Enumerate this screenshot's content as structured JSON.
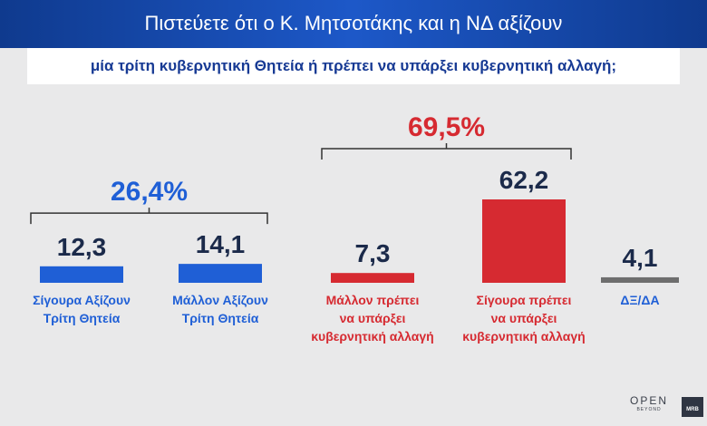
{
  "header": {
    "title": "Πιστεύετε ότι ο Κ. Μητσοτάκης και η ΝΔ αξίζουν",
    "subtitle": "μία τρίτη κυβερνητική Θητεία ή πρέπει να υπάρξει κυβερνητική αλλαγή;"
  },
  "chart_data": {
    "type": "bar",
    "title": "Πιστεύετε ότι ο Κ. Μητσοτάκης και η ΝΔ αξίζουν μία τρίτη κυβερνητική Θητεία ή πρέπει να υπάρξει κυβερνητική αλλαγή;",
    "categories": [
      [
        "Σίγουρα Αξίζουν",
        "Τρίτη Θητεία"
      ],
      [
        "Μάλλον Αξίζουν",
        "Τρίτη Θητεία"
      ],
      [
        "Μάλλον πρέπει",
        "να υπάρξει",
        "κυβερνητική αλλαγή"
      ],
      [
        "Σίγουρα πρέπει",
        "να υπάρξει",
        "κυβερνητική αλλαγή"
      ],
      [
        "ΔΞ/ΔΑ"
      ]
    ],
    "values": [
      12.3,
      14.1,
      7.3,
      62.2,
      4.1
    ],
    "value_labels": [
      "12,3",
      "14,1",
      "7,3",
      "62,2",
      "4,1"
    ],
    "colors": [
      "#1f5fd6",
      "#1f5fd6",
      "#d62a31",
      "#d62a31",
      "#6e6e6e"
    ],
    "label_colors": [
      "#1f5fd6",
      "#1f5fd6",
      "#d62a31",
      "#d62a31",
      "#1f5fd6"
    ],
    "groups": [
      {
        "label": "26,4%",
        "value": 26.4,
        "members": [
          0,
          1
        ],
        "color": "#1f5fd6"
      },
      {
        "label": "69,5%",
        "value": 69.5,
        "members": [
          2,
          3
        ],
        "color": "#d62a31"
      }
    ],
    "ylim": [
      0,
      62.2
    ],
    "grid": false,
    "legend": "none"
  },
  "branding": {
    "logo_main": "OPEN",
    "logo_sub": "BEYOND",
    "box": "MRB"
  }
}
